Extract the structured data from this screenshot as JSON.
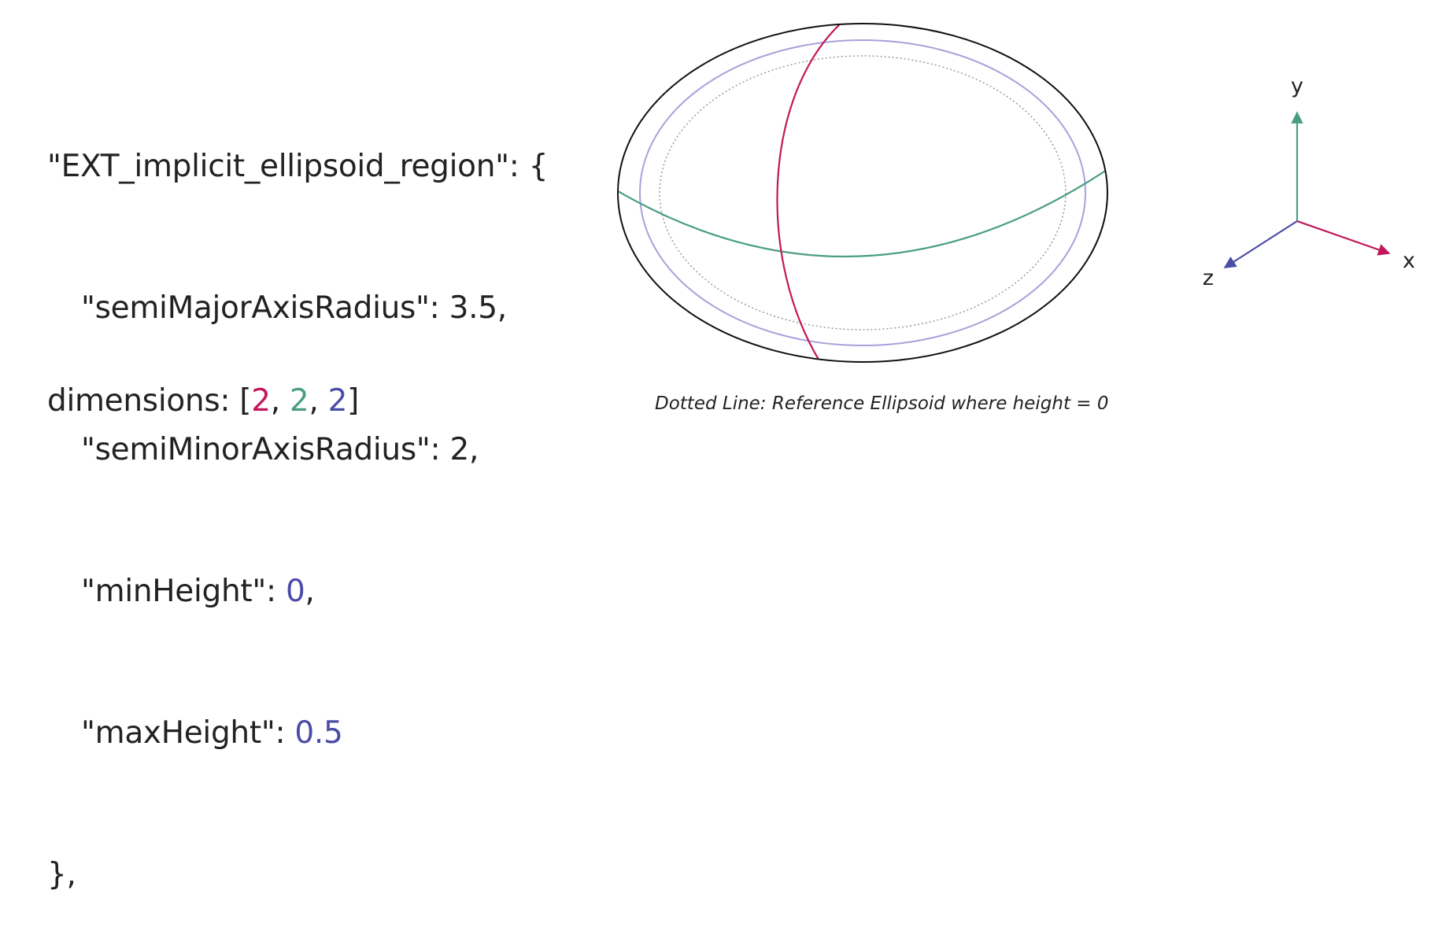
{
  "code": {
    "line1": "\"EXT_implicit_ellipsoid_region\": {",
    "line2_key": "\"semiMajorAxisRadius\": ",
    "line2_val": "3.5",
    "line2_end": ",",
    "line3_key": "\"semiMinorAxisRadius\": ",
    "line3_val": "2",
    "line3_end": ",",
    "line4_key": "\"minHeight\": ",
    "line4_val": "0",
    "line4_end": ",",
    "line5_key": "\"maxHeight\": ",
    "line5_val": "0.5",
    "line6": "},"
  },
  "dimensions": {
    "prefix": "dimensions: [",
    "x": "2",
    "sep1": ", ",
    "y": "2",
    "sep2": ", ",
    "z": "2",
    "suffix": "]"
  },
  "caption": "Dotted Line: Reference Ellipsoid where height = 0",
  "axes": {
    "x_label": "x",
    "y_label": "y",
    "z_label": "z"
  },
  "colors": {
    "x_axis": "#c2185b",
    "y_axis": "#4a9e80",
    "z_axis": "#4b4ba8",
    "outer_ellipsoid": "#111111",
    "inner_ellipsoid": "#a5a3da",
    "reference_ellipsoid": "#9a9a9a"
  }
}
